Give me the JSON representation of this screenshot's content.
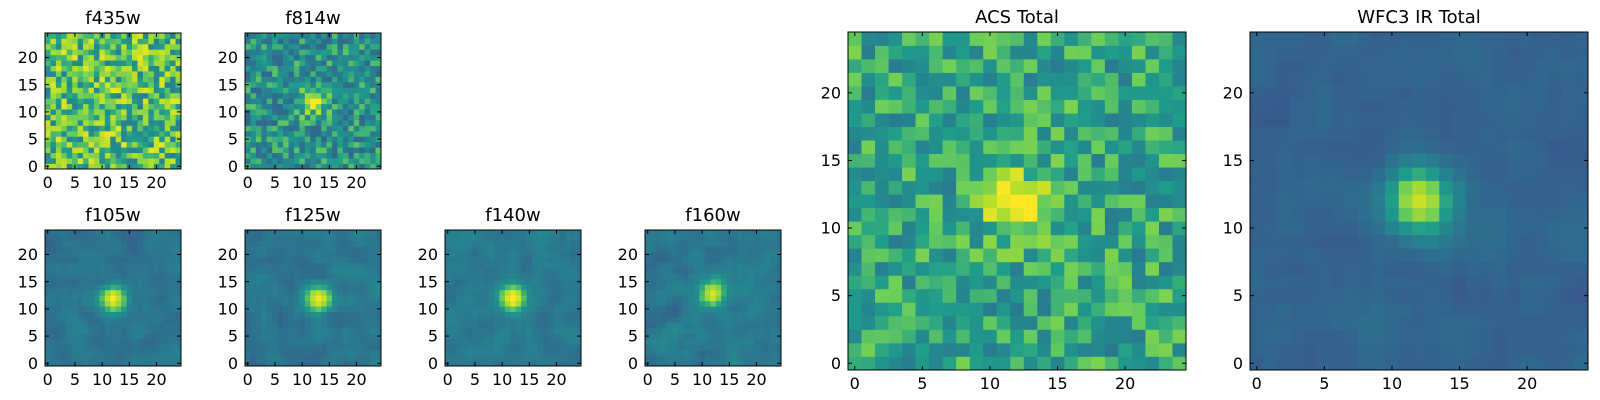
{
  "figure": {
    "colormap": "viridis",
    "colormap_stops": [
      "#440154",
      "#482777",
      "#3f4a8a",
      "#31678e",
      "#26838f",
      "#1f9d8a",
      "#6cce5a",
      "#b6de2b",
      "#fee825"
    ]
  },
  "chart_data": [
    {
      "type": "heatmap",
      "title": "f435w",
      "shape": [
        25,
        25
      ],
      "x_ticks": [
        "0",
        "5",
        "10",
        "15",
        "20"
      ],
      "y_ticks": [
        "0",
        "5",
        "10",
        "15",
        "20"
      ],
      "origin": "lower",
      "source_center": null,
      "source_strength": 0.0,
      "background_level": 0.72,
      "noise_level": 0.24
    },
    {
      "type": "heatmap",
      "title": "f814w",
      "shape": [
        25,
        25
      ],
      "x_ticks": [
        "0",
        "5",
        "10",
        "15",
        "20"
      ],
      "y_ticks": [
        "0",
        "5",
        "10",
        "15",
        "20"
      ],
      "origin": "lower",
      "source_center": [
        12,
        12
      ],
      "source_strength": 0.45,
      "background_level": 0.55,
      "noise_level": 0.18
    },
    {
      "type": "heatmap",
      "title": "f105w",
      "shape": [
        25,
        25
      ],
      "x_ticks": [
        "0",
        "5",
        "10",
        "15",
        "20"
      ],
      "y_ticks": [
        "0",
        "5",
        "10",
        "15",
        "20"
      ],
      "origin": "lower",
      "source_center": [
        12,
        12
      ],
      "source_strength": 0.55,
      "background_level": 0.43,
      "noise_level": 0.12
    },
    {
      "type": "heatmap",
      "title": "f125w",
      "shape": [
        25,
        25
      ],
      "x_ticks": [
        "0",
        "5",
        "10",
        "15",
        "20"
      ],
      "y_ticks": [
        "0",
        "5",
        "10",
        "15",
        "20"
      ],
      "origin": "lower",
      "source_center": [
        13,
        12
      ],
      "source_strength": 0.55,
      "background_level": 0.44,
      "noise_level": 0.14
    },
    {
      "type": "heatmap",
      "title": "f140w",
      "shape": [
        25,
        25
      ],
      "x_ticks": [
        "0",
        "5",
        "10",
        "15",
        "20"
      ],
      "y_ticks": [
        "0",
        "5",
        "10",
        "15",
        "20"
      ],
      "origin": "lower",
      "source_center": [
        12,
        12
      ],
      "source_strength": 0.55,
      "background_level": 0.45,
      "noise_level": 0.13
    },
    {
      "type": "heatmap",
      "title": "f160w",
      "shape": [
        25,
        25
      ],
      "x_ticks": [
        "0",
        "5",
        "10",
        "15",
        "20"
      ],
      "y_ticks": [
        "0",
        "5",
        "10",
        "15",
        "20"
      ],
      "origin": "lower",
      "source_center": [
        12,
        13
      ],
      "source_strength": 0.5,
      "background_level": 0.45,
      "noise_level": 0.14
    },
    {
      "type": "heatmap",
      "title": "ACS Total",
      "shape": [
        25,
        25
      ],
      "x_ticks": [
        "0",
        "5",
        "10",
        "15",
        "20"
      ],
      "y_ticks": [
        "0",
        "5",
        "10",
        "15",
        "20"
      ],
      "origin": "lower",
      "source_center": [
        12,
        12
      ],
      "source_strength": 0.4,
      "background_level": 0.62,
      "noise_level": 0.16
    },
    {
      "type": "heatmap",
      "title": "WFC3 IR Total",
      "shape": [
        25,
        25
      ],
      "x_ticks": [
        "0",
        "5",
        "10",
        "15",
        "20"
      ],
      "y_ticks": [
        "0",
        "5",
        "10",
        "15",
        "20"
      ],
      "origin": "lower",
      "source_center": [
        12,
        12
      ],
      "source_strength": 0.58,
      "background_level": 0.36,
      "noise_level": 0.09
    }
  ]
}
